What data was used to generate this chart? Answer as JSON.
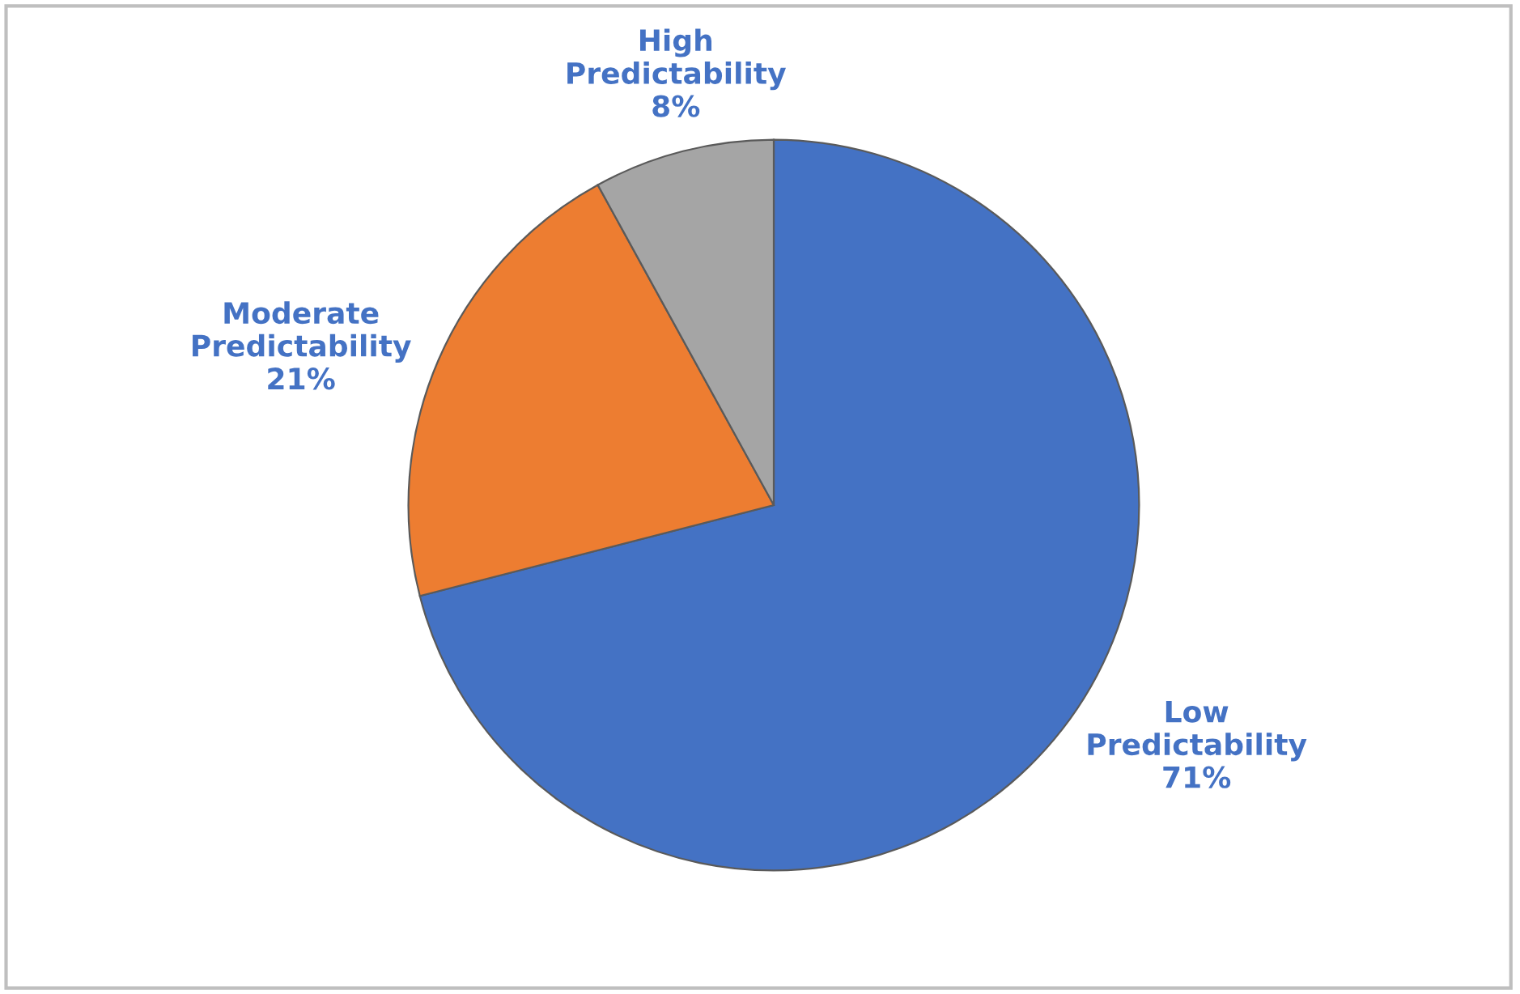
{
  "chart_data": {
    "type": "pie",
    "categories": [
      "Low Predictability",
      "Moderate Predictability",
      "High Predictability"
    ],
    "values": [
      71,
      21,
      8
    ],
    "colors": [
      "#4472c4",
      "#ed7d31",
      "#a5a5a5"
    ],
    "value_labels": [
      "71%",
      "21%",
      "8%"
    ]
  }
}
